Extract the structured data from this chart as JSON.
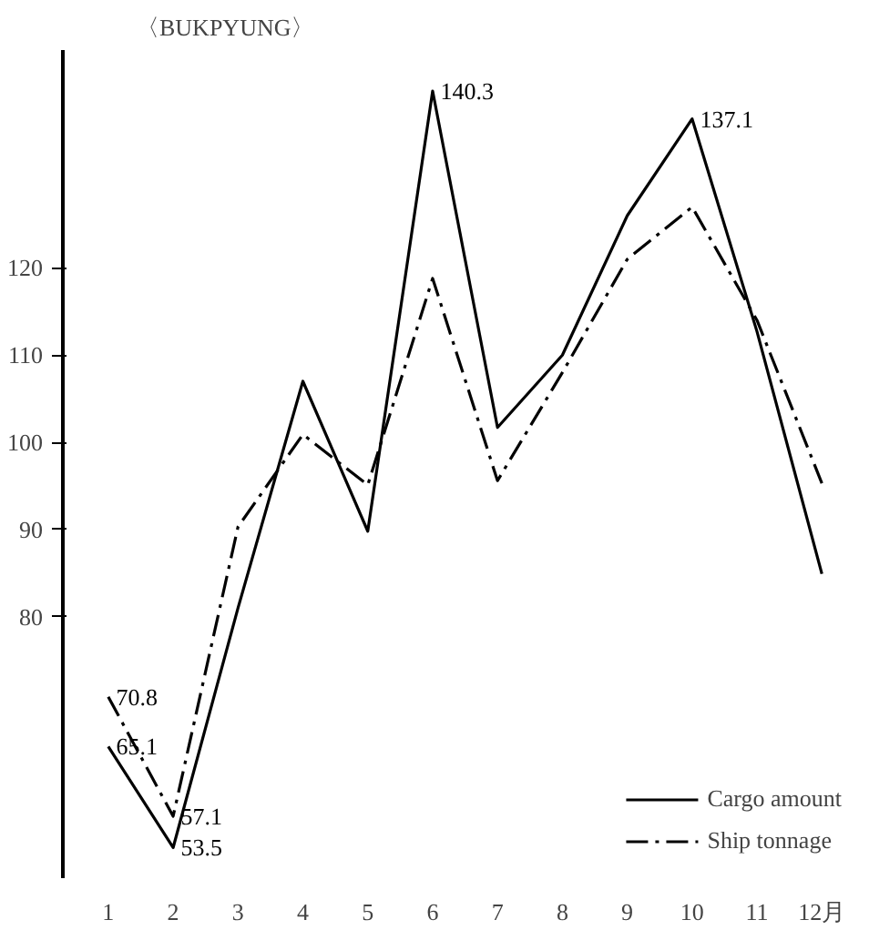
{
  "chart_data": {
    "type": "line",
    "title": "〈BUKPYUNG〉",
    "categories": [
      "1",
      "2",
      "3",
      "4",
      "5",
      "6",
      "7",
      "8",
      "9",
      "10",
      "11",
      "12月"
    ],
    "series": [
      {
        "name": "Cargo amount",
        "color": "#000000",
        "line_style": "solid",
        "values": [
          65.1,
          53.5,
          81,
          107,
          89.8,
          140.3,
          101.7,
          110,
          126,
          137.1,
          112.7,
          84.9
        ],
        "value_labels": [
          "65.1",
          "53.5",
          null,
          null,
          null,
          "140.3",
          null,
          null,
          null,
          "137.1",
          null,
          null
        ]
      },
      {
        "name": "Ship tonnage",
        "color": "#000000",
        "line_style": "dashdot",
        "values": [
          70.8,
          57.1,
          90.3,
          100.9,
          95.1,
          118.8,
          95.6,
          108,
          121,
          127,
          114,
          95.3
        ],
        "value_labels": [
          "70.8",
          "57.1",
          null,
          null,
          null,
          null,
          null,
          null,
          null,
          null,
          null,
          null
        ]
      }
    ],
    "ylim": [
      50,
      145
    ],
    "yticks": [
      80,
      90,
      100,
      110,
      120
    ],
    "grid": false,
    "legend": "bottom right",
    "marker": "none"
  }
}
